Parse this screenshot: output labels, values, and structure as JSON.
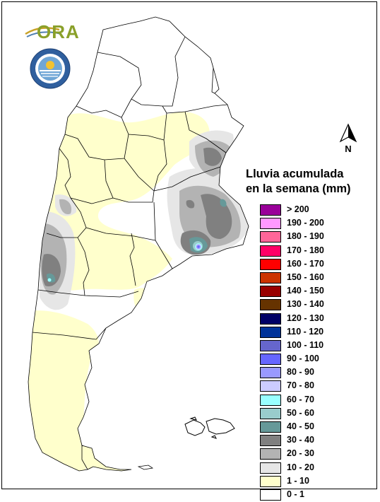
{
  "logo": {
    "text": "ORA"
  },
  "north_arrow": {
    "label": "N"
  },
  "legend": {
    "title_line1": "Lluvia acumulada",
    "title_line2": "en la semana (mm)",
    "items": [
      {
        "label": "> 200",
        "color": "#990099"
      },
      {
        "label": "190 - 200",
        "color": "#ff99ff"
      },
      {
        "label": "180 - 190",
        "color": "#ff6699"
      },
      {
        "label": "170 - 180",
        "color": "#ff0066"
      },
      {
        "label": "160 - 170",
        "color": "#ff0000"
      },
      {
        "label": "150 - 160",
        "color": "#cc3300"
      },
      {
        "label": "140 - 150",
        "color": "#990000"
      },
      {
        "label": "130 - 140",
        "color": "#663300"
      },
      {
        "label": "120 - 130",
        "color": "#000066"
      },
      {
        "label": "110 - 120",
        "color": "#003399"
      },
      {
        "label": "100 - 110",
        "color": "#6666cc"
      },
      {
        "label": "90 - 100",
        "color": "#6666ff"
      },
      {
        "label": "80 - 90",
        "color": "#9999ff"
      },
      {
        "label": "70 - 80",
        "color": "#ccccff"
      },
      {
        "label": "60 - 70",
        "color": "#99ffff"
      },
      {
        "label": "50 - 60",
        "color": "#99cccc"
      },
      {
        "label": "40 - 50",
        "color": "#669999"
      },
      {
        "label": "30 - 40",
        "color": "#808080"
      },
      {
        "label": "20 - 30",
        "color": "#b3b3b3"
      },
      {
        "label": "10 - 20",
        "color": "#e6e6e6"
      },
      {
        "label": "1 - 10",
        "color": "#ffffcc"
      },
      {
        "label": "0 - 1",
        "color": "#ffffff"
      }
    ]
  }
}
